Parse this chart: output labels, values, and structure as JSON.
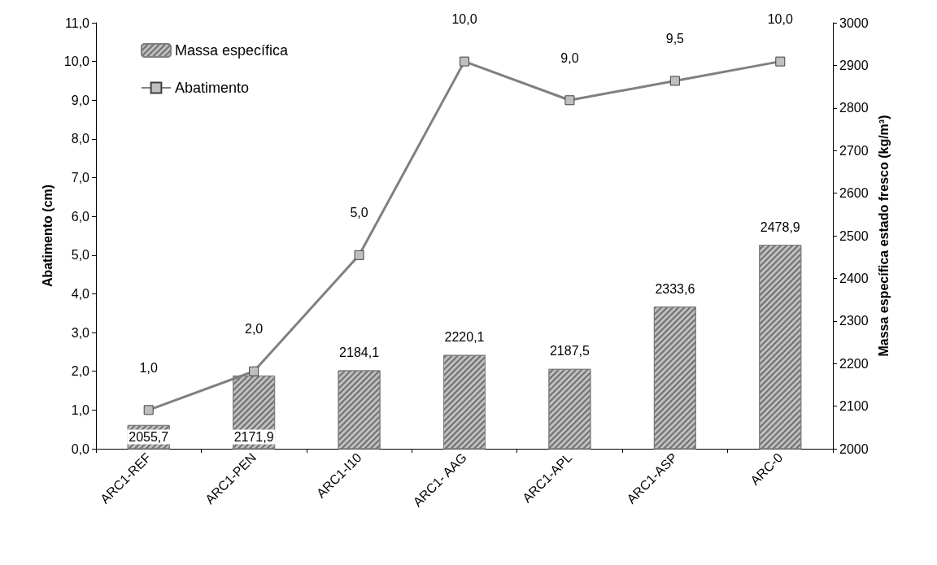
{
  "chart_data": {
    "type": "bar",
    "categories": [
      "ARC1-REF",
      "ARC1-PEN",
      "ARC1-I10",
      "ARC1- AAG",
      "ARC1-APL",
      "ARC1-ASP",
      "ARC-0"
    ],
    "ylabel": "Abatimento (cm)",
    "y2label": "Massa específica estado fresco (kg/m³)",
    "ylim": [
      0,
      11
    ],
    "yticks": [
      {
        "value": 0,
        "label": "0,0"
      },
      {
        "value": 1,
        "label": "1,0"
      },
      {
        "value": 2,
        "label": "2,0"
      },
      {
        "value": 3,
        "label": "3,0"
      },
      {
        "value": 4,
        "label": "4,0"
      },
      {
        "value": 5,
        "label": "5,0"
      },
      {
        "value": 6,
        "label": "6,0"
      },
      {
        "value": 7,
        "label": "7,0"
      },
      {
        "value": 8,
        "label": "8,0"
      },
      {
        "value": 9,
        "label": "9,0"
      },
      {
        "value": 10,
        "label": "10,0"
      },
      {
        "value": 11,
        "label": "11,0"
      }
    ],
    "y2lim": [
      2000,
      3000
    ],
    "y2ticks": [
      2000,
      2100,
      2200,
      2300,
      2400,
      2500,
      2600,
      2700,
      2800,
      2900,
      3000
    ],
    "legend": "top left",
    "grid": false,
    "series": [
      {
        "name": "Massa específica",
        "axis": "y2",
        "color": "#bfbfbf",
        "values": [
          2055.7,
          2171.9,
          2184.1,
          2220.1,
          2187.5,
          2333.6,
          2478.9
        ],
        "value_labels": [
          "2055,7",
          "2171,9",
          "2184,1",
          "2220,1",
          "2187,5",
          "2333,6",
          "2478,9"
        ]
      },
      {
        "name": "Abatimento",
        "type": "line",
        "color": "#808080",
        "marker": "square",
        "values": [
          1,
          2,
          5,
          10,
          9,
          9.5,
          10
        ],
        "value_labels": [
          "1,0",
          "2,0",
          "5,0",
          "10,0",
          "9,0",
          "9,5",
          "10,0"
        ]
      }
    ]
  }
}
